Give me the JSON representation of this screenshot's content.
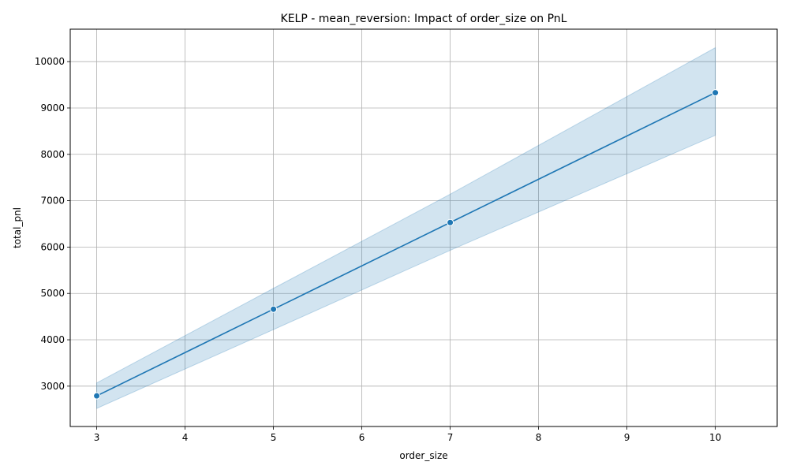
{
  "chart_data": {
    "type": "line",
    "title": "KELP - mean_reversion: Impact of order_size on PnL",
    "xlabel": "order_size",
    "ylabel": "total_pnl",
    "xlim": [
      2.7,
      10.7
    ],
    "ylim": [
      2130,
      10700
    ],
    "xticks": [
      3,
      4,
      5,
      6,
      7,
      8,
      9,
      10
    ],
    "yticks": [
      3000,
      4000,
      5000,
      6000,
      7000,
      8000,
      9000,
      10000
    ],
    "grid": true,
    "legend": "none",
    "series": [
      {
        "color": "#1f77b4",
        "band_color": "#1f77b4",
        "x": [
          3,
          5,
          7,
          10
        ],
        "y": [
          2790,
          4660,
          6530,
          9330
        ],
        "ci_lower": [
          2520,
          4220,
          5930,
          8410
        ],
        "ci_upper": [
          3070,
          5110,
          7140,
          10300
        ]
      }
    ]
  }
}
